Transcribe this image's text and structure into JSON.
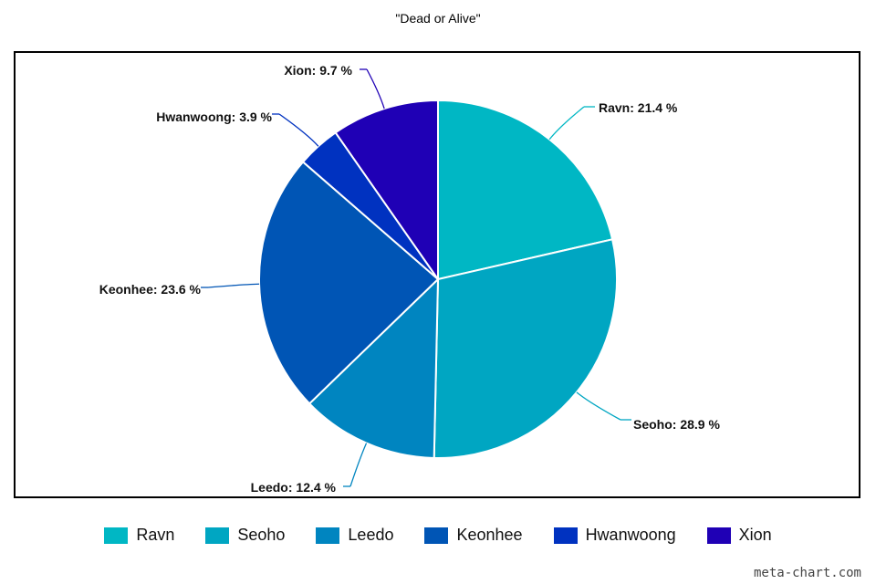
{
  "chart_data": {
    "type": "pie",
    "title": "\"Dead or Alive\"",
    "slices": [
      {
        "label": "Ravn",
        "value": 21.4,
        "display": "Ravn: 21.4 %",
        "color": "#00b7c4"
      },
      {
        "label": "Seoho",
        "value": 28.9,
        "display": "Seoho: 28.9 %",
        "color": "#00a6c2"
      },
      {
        "label": "Leedo",
        "value": 12.4,
        "display": "Leedo: 12.4 %",
        "color": "#0085c0"
      },
      {
        "label": "Keonhee",
        "value": 23.6,
        "display": "Keonhee: 23.6 %",
        "color": "#0055b5"
      },
      {
        "label": "Hwanwoong",
        "value": 3.9,
        "display": "Hwanwoong: 3.9 %",
        "color": "#0032c0"
      },
      {
        "label": "Xion",
        "value": 9.7,
        "display": "Xion: 9.7 %",
        "color": "#1f00b5"
      }
    ],
    "legend": "bottom"
  },
  "watermark": "meta-chart.com"
}
